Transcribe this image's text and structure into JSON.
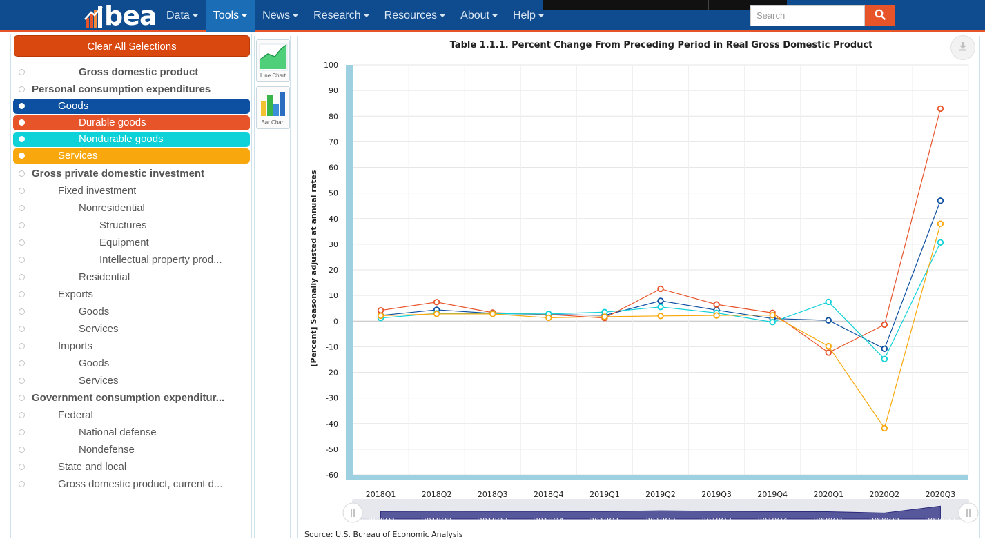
{
  "nav": {
    "logo_text": "bea",
    "items": [
      {
        "label": "Data",
        "active": false
      },
      {
        "label": "Tools",
        "active": true
      },
      {
        "label": "News",
        "active": false
      },
      {
        "label": "Research",
        "active": false
      },
      {
        "label": "Resources",
        "active": false
      },
      {
        "label": "About",
        "active": false
      },
      {
        "label": "Help",
        "active": false
      }
    ],
    "search_placeholder": "Search",
    "accent_color": "#e8542a",
    "bar_color": "#0e4c8f"
  },
  "left_panel": {
    "clear_label": "Clear All Selections",
    "items": [
      {
        "label": "Gross domestic product",
        "level": 2,
        "bold": true,
        "selected": null
      },
      {
        "label": "Personal consumption expenditures",
        "level": 0,
        "bold": true,
        "selected": null
      },
      {
        "label": "Goods",
        "level": 1,
        "bold": false,
        "selected": "#0d4fa0"
      },
      {
        "label": "Durable goods",
        "level": 2,
        "bold": false,
        "selected": "#e8542a"
      },
      {
        "label": "Nondurable goods",
        "level": 2,
        "bold": false,
        "selected": "#0fd1d8"
      },
      {
        "label": "Services",
        "level": 1,
        "bold": false,
        "selected": "#f8a80c"
      },
      {
        "label": "Gross private domestic investment",
        "level": 0,
        "bold": true,
        "selected": null
      },
      {
        "label": "Fixed investment",
        "level": 1,
        "bold": false,
        "selected": null
      },
      {
        "label": "Nonresidential",
        "level": 2,
        "bold": false,
        "selected": null
      },
      {
        "label": "Structures",
        "level": 3,
        "bold": false,
        "selected": null
      },
      {
        "label": "Equipment",
        "level": 3,
        "bold": false,
        "selected": null
      },
      {
        "label": "Intellectual property prod...",
        "level": 3,
        "bold": false,
        "selected": null
      },
      {
        "label": "Residential",
        "level": 2,
        "bold": false,
        "selected": null
      },
      {
        "label": "Exports",
        "level": 1,
        "bold": false,
        "selected": null
      },
      {
        "label": "Goods",
        "level": 2,
        "bold": false,
        "selected": null
      },
      {
        "label": "Services",
        "level": 2,
        "bold": false,
        "selected": null
      },
      {
        "label": "Imports",
        "level": 1,
        "bold": false,
        "selected": null
      },
      {
        "label": "Goods",
        "level": 2,
        "bold": false,
        "selected": null
      },
      {
        "label": "Services",
        "level": 2,
        "bold": false,
        "selected": null
      },
      {
        "label": "Government consumption expenditur...",
        "level": 0,
        "bold": true,
        "selected": null
      },
      {
        "label": "Federal",
        "level": 1,
        "bold": false,
        "selected": null
      },
      {
        "label": "National defense",
        "level": 2,
        "bold": false,
        "selected": null
      },
      {
        "label": "Nondefense",
        "level": 2,
        "bold": false,
        "selected": null
      },
      {
        "label": "State and local",
        "level": 1,
        "bold": false,
        "selected": null
      },
      {
        "label": "Gross domestic product, current d...",
        "level": 1,
        "bold": false,
        "selected": null
      }
    ]
  },
  "chart_types": {
    "line_label": "Line Chart",
    "bar_label": "Bar Chart"
  },
  "chart_data": {
    "type": "line",
    "title": "Table 1.1.1. Percent Change From Preceding Period in Real Gross Domestic Product",
    "ylabel": "[Percent] Seasonally adjusted at annual rates",
    "xlabel": "",
    "ylim": [
      -60,
      100
    ],
    "yticks": [
      100,
      90,
      80,
      70,
      60,
      50,
      40,
      30,
      20,
      10,
      0,
      -10,
      -20,
      -30,
      -40,
      -50,
      -60
    ],
    "grid": true,
    "categories": [
      "2018Q1",
      "2018Q2",
      "2018Q3",
      "2018Q4",
      "2019Q1",
      "2019Q2",
      "2019Q3",
      "2019Q4",
      "2020Q1",
      "2020Q2",
      "2020Q3"
    ],
    "series": [
      {
        "color": "#0d4fa0",
        "values": [
          2.2,
          4.4,
          3.0,
          2.6,
          2.2,
          7.9,
          4.3,
          1.0,
          0.3,
          -10.8,
          47.0
        ]
      },
      {
        "color": "#e8542a",
        "values": [
          4.2,
          7.4,
          3.3,
          2.6,
          1.2,
          12.6,
          6.5,
          3.2,
          -12.3,
          -1.4,
          82.9
        ]
      },
      {
        "color": "#0fd1d8",
        "values": [
          1.2,
          3.0,
          2.9,
          2.8,
          3.5,
          5.5,
          3.2,
          -0.4,
          7.5,
          -14.8,
          30.7
        ]
      },
      {
        "color": "#f8a80c",
        "values": [
          2.1,
          2.8,
          2.8,
          1.3,
          1.7,
          2.0,
          2.2,
          2.3,
          -9.8,
          -41.8,
          38.0
        ]
      }
    ],
    "source": "Source: U.S. Bureau of Economic Analysis"
  }
}
